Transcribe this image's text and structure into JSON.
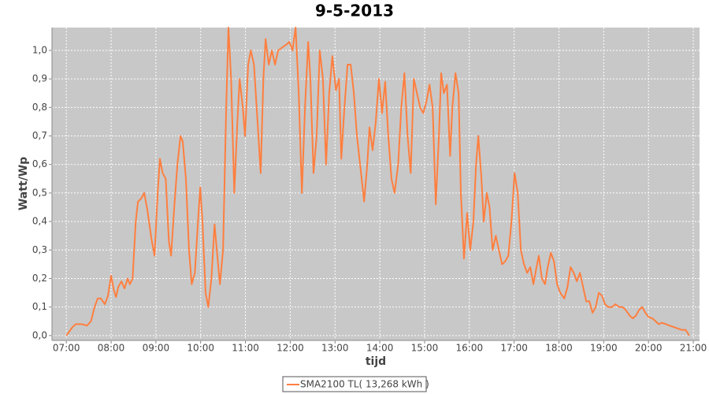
{
  "chart_data": {
    "type": "line",
    "title": "9-5-2013",
    "x_label": "tijd",
    "y_label": "Watt/Wp",
    "xlim": [
      6.68,
      21.14
    ],
    "ylim": [
      -0.017,
      1.08
    ],
    "grid": true,
    "legend": "bottom",
    "xticks": [
      {
        "value": 7,
        "label": "07:00"
      },
      {
        "value": 8,
        "label": "08:00"
      },
      {
        "value": 9,
        "label": "09:00"
      },
      {
        "value": 10,
        "label": "10:00"
      },
      {
        "value": 11,
        "label": "11:00"
      },
      {
        "value": 12,
        "label": "12:00"
      },
      {
        "value": 13,
        "label": "13:00"
      },
      {
        "value": 14,
        "label": "14:00"
      },
      {
        "value": 15,
        "label": "15:00"
      },
      {
        "value": 16,
        "label": "16:00"
      },
      {
        "value": 17,
        "label": "17:00"
      },
      {
        "value": 18,
        "label": "18:00"
      },
      {
        "value": 19,
        "label": "19:00"
      },
      {
        "value": 20,
        "label": "20:00"
      },
      {
        "value": 21,
        "label": "21:00"
      }
    ],
    "yticks": [
      {
        "value": 0,
        "label": "0,0"
      },
      {
        "value": 0.1,
        "label": "0,1"
      },
      {
        "value": 0.2,
        "label": "0,2"
      },
      {
        "value": 0.3,
        "label": "0,3"
      },
      {
        "value": 0.4,
        "label": "0,4"
      },
      {
        "value": 0.5,
        "label": "0,5"
      },
      {
        "value": 0.6,
        "label": "0,6"
      },
      {
        "value": 0.7,
        "label": "0,7"
      },
      {
        "value": 0.8,
        "label": "0,8"
      },
      {
        "value": 0.9,
        "label": "0,9"
      },
      {
        "value": 1.0,
        "label": "1,0"
      }
    ],
    "x": [
      7.0,
      7.14,
      7.21,
      7.35,
      7.46,
      7.55,
      7.63,
      7.7,
      7.77,
      7.86,
      7.93,
      8.0,
      8.06,
      8.11,
      8.16,
      8.23,
      8.3,
      8.37,
      8.42,
      8.48,
      8.55,
      8.6,
      8.67,
      8.74,
      8.81,
      8.9,
      8.97,
      9.04,
      9.09,
      9.15,
      9.22,
      9.29,
      9.34,
      9.41,
      9.48,
      9.55,
      9.6,
      9.67,
      9.74,
      9.8,
      9.87,
      9.94,
      9.99,
      10.04,
      10.11,
      10.17,
      10.24,
      10.31,
      10.36,
      10.43,
      10.5,
      10.57,
      10.62,
      10.68,
      10.75,
      10.82,
      10.87,
      10.94,
      10.99,
      11.06,
      11.12,
      11.19,
      11.27,
      11.34,
      11.4,
      11.45,
      11.52,
      11.59,
      11.66,
      11.73,
      11.82,
      11.91,
      11.98,
      12.05,
      12.12,
      12.19,
      12.26,
      12.33,
      12.4,
      12.45,
      12.52,
      12.59,
      12.66,
      12.73,
      12.8,
      12.87,
      12.94,
      13.02,
      13.09,
      13.14,
      13.21,
      13.28,
      13.35,
      13.42,
      13.49,
      13.56,
      13.65,
      13.72,
      13.77,
      13.84,
      13.91,
      13.98,
      14.05,
      14.12,
      14.19,
      14.26,
      14.33,
      14.41,
      14.48,
      14.55,
      14.62,
      14.69,
      14.76,
      14.83,
      14.9,
      14.97,
      15.04,
      15.11,
      15.18,
      15.25,
      15.32,
      15.37,
      15.43,
      15.5,
      15.57,
      15.62,
      15.69,
      15.76,
      15.81,
      15.88,
      15.95,
      16.02,
      16.09,
      16.15,
      16.2,
      16.27,
      16.32,
      16.39,
      16.45,
      16.52,
      16.59,
      16.66,
      16.73,
      16.8,
      16.87,
      16.94,
      17.01,
      17.08,
      17.15,
      17.22,
      17.29,
      17.36,
      17.43,
      17.5,
      17.55,
      17.62,
      17.69,
      17.75,
      17.82,
      17.89,
      17.96,
      18.03,
      18.12,
      18.19,
      18.26,
      18.33,
      18.4,
      18.47,
      18.54,
      18.61,
      18.68,
      18.75,
      18.82,
      18.89,
      18.96,
      19.03,
      19.1,
      19.19,
      19.26,
      19.35,
      19.42,
      19.49,
      19.58,
      19.65,
      19.72,
      19.79,
      19.86,
      19.93,
      20.0,
      20.09,
      20.16,
      20.23,
      20.3,
      20.39,
      20.47,
      20.56,
      20.65,
      20.74,
      20.83,
      20.91
    ],
    "series": [
      {
        "name": "SMA2100 TL( 13,268 kWh )",
        "color": "#ff7f3f",
        "values": [
          0,
          0.03,
          0.04,
          0.04,
          0.035,
          0.05,
          0.1,
          0.13,
          0.13,
          0.11,
          0.14,
          0.21,
          0.16,
          0.135,
          0.17,
          0.19,
          0.165,
          0.2,
          0.18,
          0.2,
          0.4,
          0.47,
          0.48,
          0.5,
          0.44,
          0.34,
          0.28,
          0.5,
          0.62,
          0.57,
          0.55,
          0.33,
          0.28,
          0.45,
          0.6,
          0.7,
          0.68,
          0.55,
          0.3,
          0.18,
          0.22,
          0.4,
          0.52,
          0.4,
          0.15,
          0.1,
          0.2,
          0.39,
          0.3,
          0.18,
          0.3,
          0.8,
          1.08,
          0.9,
          0.5,
          0.75,
          0.9,
          0.8,
          0.7,
          0.95,
          1.0,
          0.95,
          0.75,
          0.57,
          0.9,
          1.04,
          0.95,
          1.0,
          0.95,
          1.0,
          1.01,
          1.02,
          1.03,
          1.0,
          1.08,
          0.85,
          0.5,
          0.8,
          1.03,
          0.9,
          0.57,
          0.7,
          1.0,
          0.9,
          0.6,
          0.85,
          0.98,
          0.86,
          0.9,
          0.62,
          0.8,
          0.95,
          0.95,
          0.85,
          0.7,
          0.6,
          0.47,
          0.6,
          0.73,
          0.65,
          0.75,
          0.9,
          0.78,
          0.89,
          0.7,
          0.55,
          0.5,
          0.6,
          0.8,
          0.92,
          0.7,
          0.57,
          0.9,
          0.85,
          0.8,
          0.78,
          0.82,
          0.88,
          0.8,
          0.46,
          0.7,
          0.92,
          0.85,
          0.88,
          0.63,
          0.8,
          0.92,
          0.85,
          0.5,
          0.27,
          0.43,
          0.3,
          0.4,
          0.6,
          0.7,
          0.55,
          0.4,
          0.5,
          0.45,
          0.3,
          0.35,
          0.3,
          0.25,
          0.26,
          0.28,
          0.4,
          0.57,
          0.5,
          0.3,
          0.25,
          0.22,
          0.24,
          0.18,
          0.24,
          0.28,
          0.2,
          0.18,
          0.24,
          0.29,
          0.26,
          0.18,
          0.15,
          0.13,
          0.17,
          0.24,
          0.22,
          0.19,
          0.22,
          0.17,
          0.12,
          0.12,
          0.08,
          0.1,
          0.15,
          0.14,
          0.11,
          0.1,
          0.1,
          0.11,
          0.1,
          0.1,
          0.09,
          0.07,
          0.06,
          0.07,
          0.09,
          0.1,
          0.08,
          0.065,
          0.06,
          0.05,
          0.04,
          0.045,
          0.04,
          0.035,
          0.03,
          0.025,
          0.02,
          0.02,
          0
        ]
      }
    ]
  }
}
